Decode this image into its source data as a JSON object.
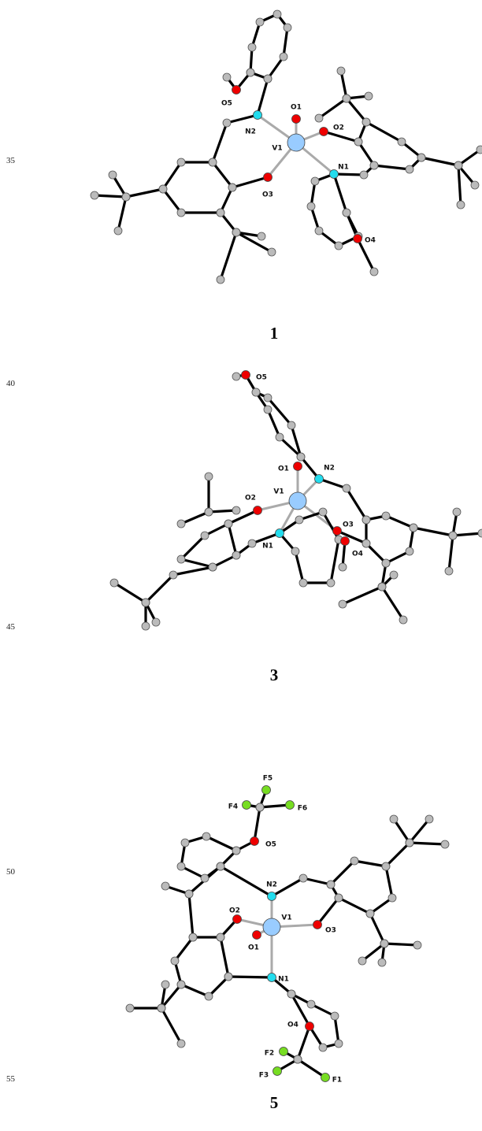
{
  "line_numbers": [
    "35",
    "40",
    "45",
    "50",
    "55"
  ],
  "figures": [
    {
      "label": "1",
      "atoms": [
        "O5",
        "O1",
        "N2",
        "V1",
        "O2",
        "N1",
        "O3",
        "O4"
      ]
    },
    {
      "label": "3",
      "atoms": [
        "O5",
        "O1",
        "N2",
        "V1",
        "O2",
        "N1",
        "O3",
        "O4"
      ]
    },
    {
      "label": "5",
      "atoms": [
        "F5",
        "F4",
        "F6",
        "O5",
        "N2",
        "O2",
        "V1",
        "O1",
        "O3",
        "N1",
        "O4",
        "F2",
        "F3",
        "F1"
      ]
    }
  ]
}
